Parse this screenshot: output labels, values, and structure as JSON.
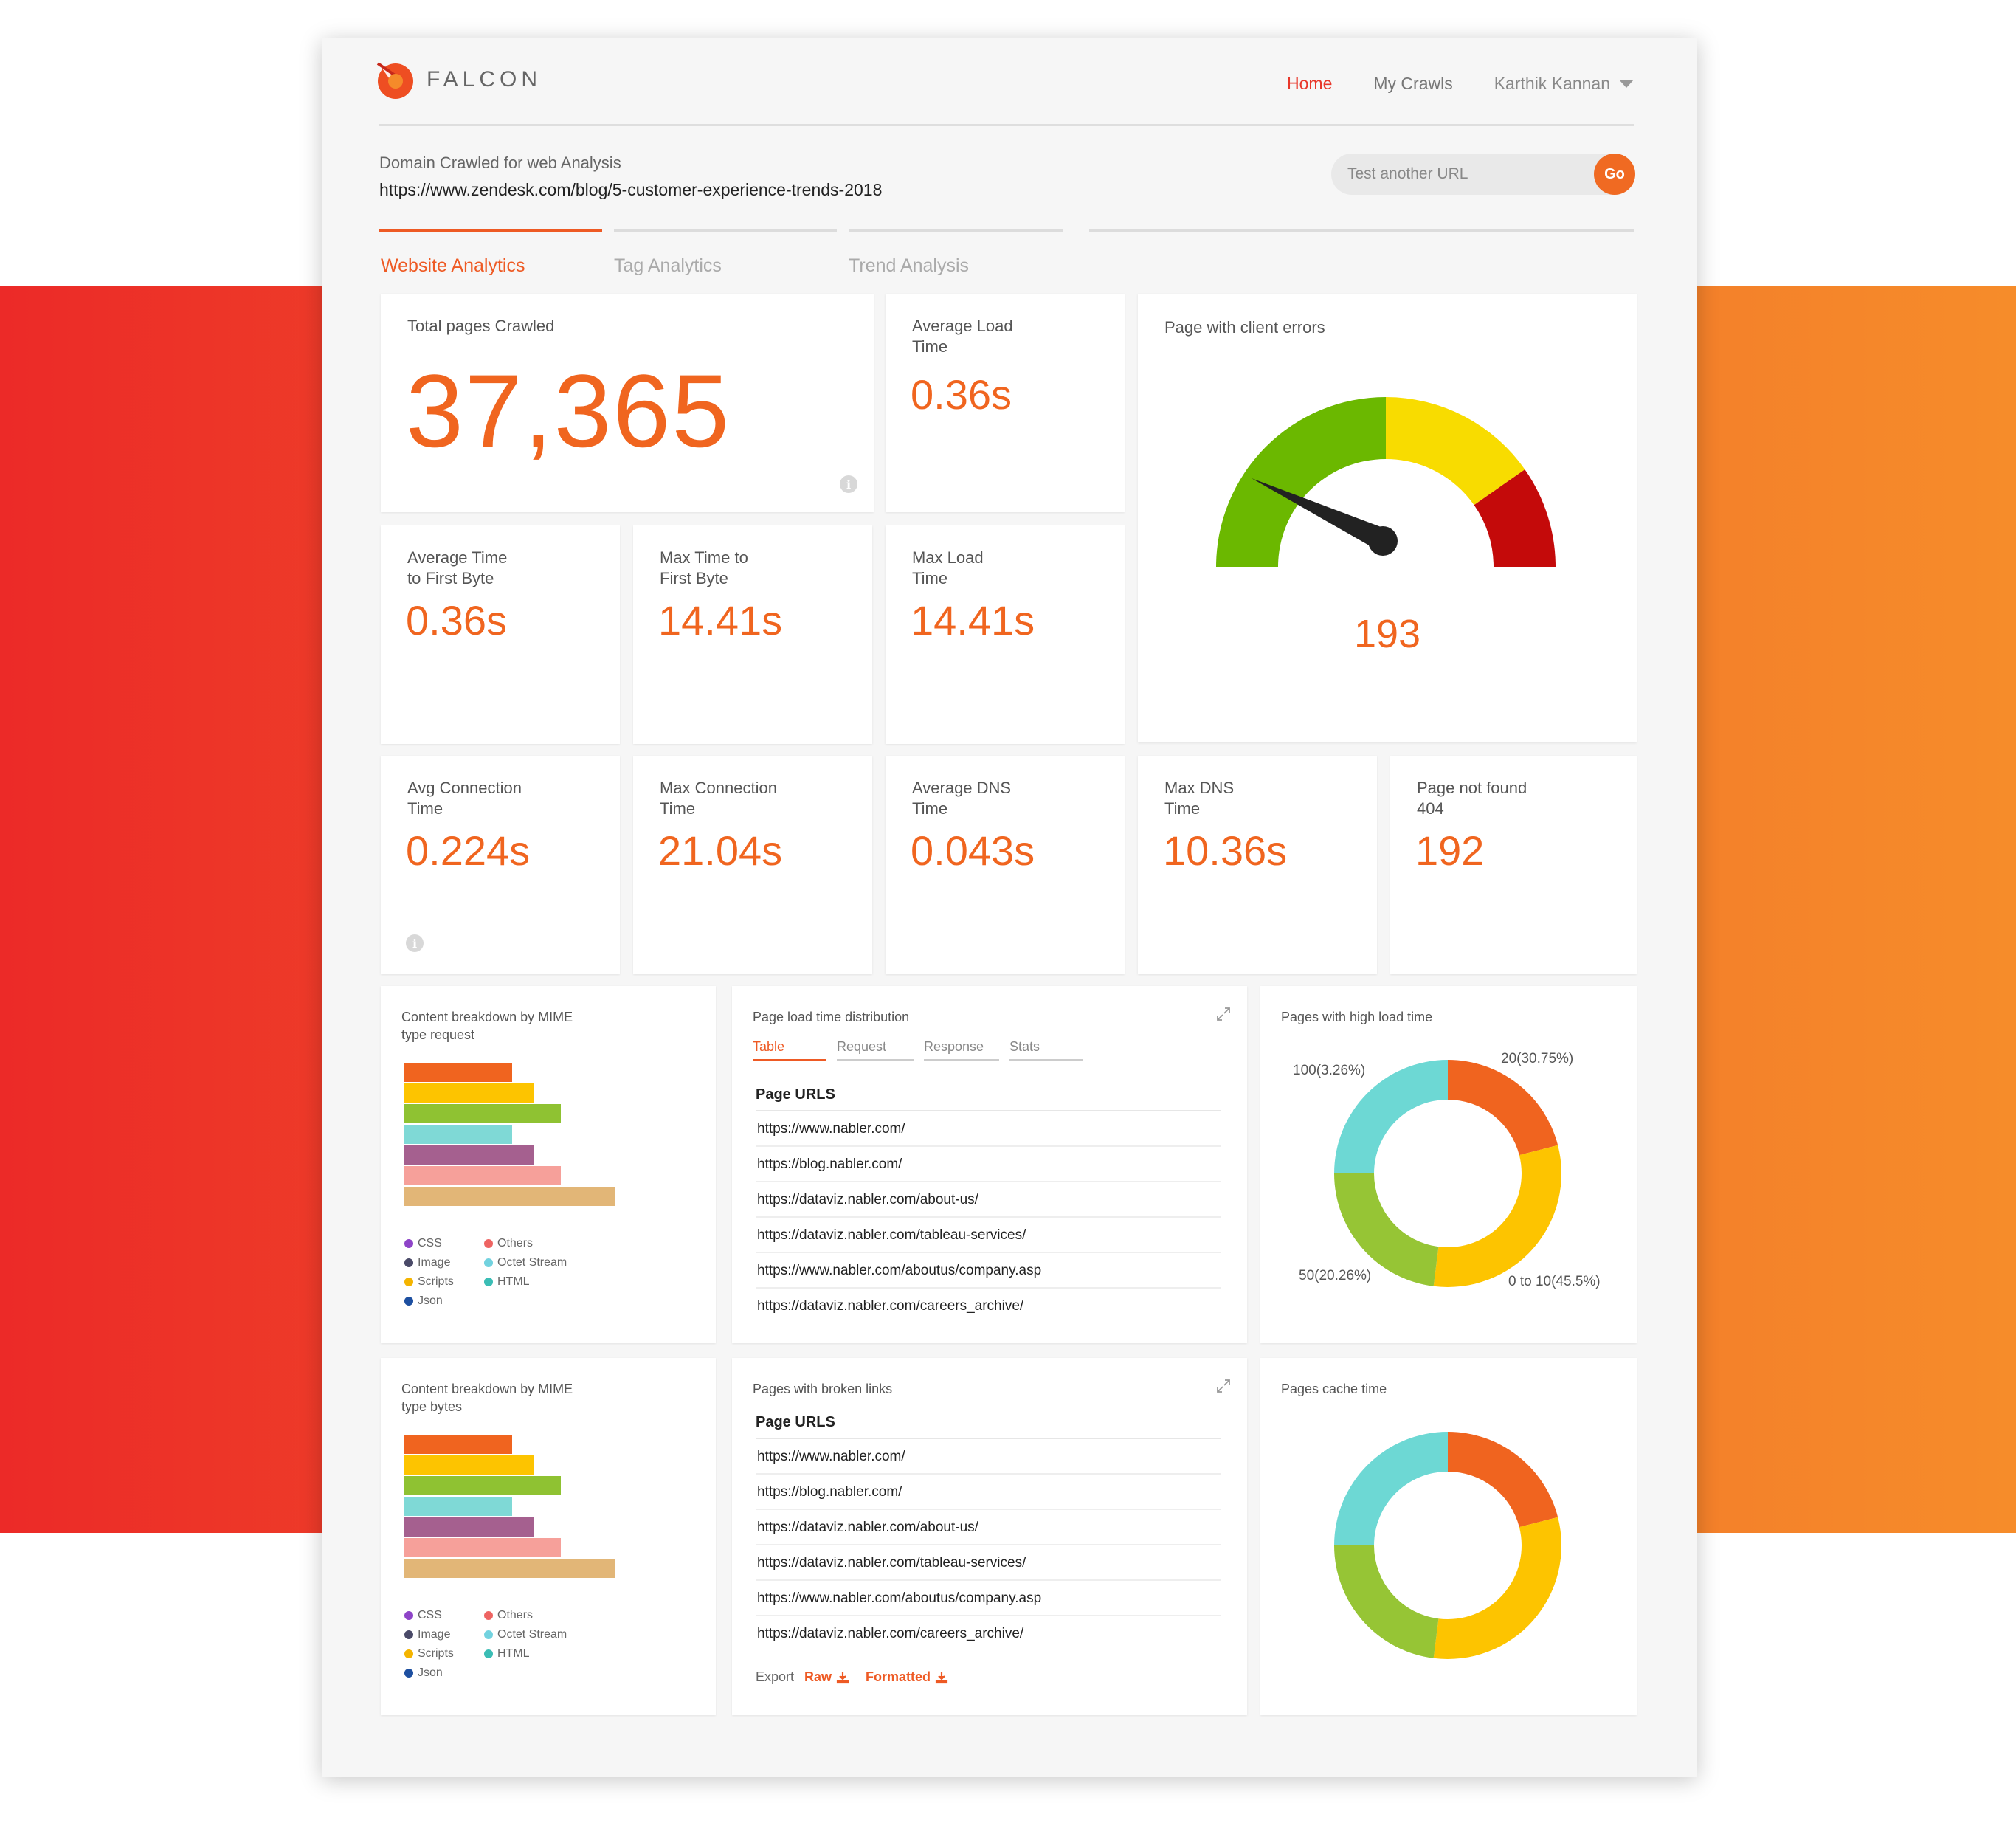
{
  "app": {
    "name": "FALCON"
  },
  "nav": {
    "home": "Home",
    "my_crawls": "My Crawls",
    "user": "Karthik Kannan"
  },
  "domain": {
    "label": "Domain Crawled for web Analysis",
    "url": "https://www.zendesk.com/blog/5-customer-experience-trends-2018"
  },
  "search": {
    "placeholder": "Test another URL",
    "go_label": "Go"
  },
  "tabs": [
    "Website Analytics",
    "Tag Analytics",
    "Trend Analysis"
  ],
  "metrics": {
    "total_pages": {
      "title": "Total pages Crawled",
      "value": "37,365"
    },
    "avg_load": {
      "title_l1": "Average Load",
      "title_l2": "Time",
      "value": "0.36s"
    },
    "avg_ttfb": {
      "title_l1": "Average Time",
      "title_l2": "to First Byte",
      "value": "0.36s"
    },
    "max_ttfb": {
      "title_l1": "Max Time to",
      "title_l2": "First Byte",
      "value": "14.41s"
    },
    "max_load": {
      "title_l1": "Max Load",
      "title_l2": "Time",
      "value": "14.41s"
    },
    "avg_conn": {
      "title_l1": "Avg Connection",
      "title_l2": "Time",
      "value": "0.224s"
    },
    "max_conn": {
      "title_l1": "Max Connection",
      "title_l2": "Time",
      "value": "21.04s"
    },
    "avg_dns": {
      "title_l1": "Average DNS",
      "title_l2": "Time",
      "value": "0.043s"
    },
    "max_dns": {
      "title_l1": "Max DNS",
      "title_l2": "Time",
      "value": "10.36s"
    },
    "not_found": {
      "title_l1": "Page not found",
      "title_l2": "404",
      "value": "192"
    }
  },
  "client_errors": {
    "title": "Page with client errors",
    "value": "193",
    "colors": {
      "green": "#6bb800",
      "yellow": "#f8dc00",
      "red": "#c40a0a",
      "needle": "#222222"
    }
  },
  "mime_request": {
    "title_l1": "Content breakdown by MIME",
    "title_l2": "type request"
  },
  "mime_bytes": {
    "title_l1": "Content breakdown by MIME",
    "title_l2": "type bytes"
  },
  "bar_colors": [
    "#f0641f",
    "#fdc400",
    "#8fc232",
    "#7fd9d6",
    "#a5608f",
    "#f6a09a",
    "#e2b677"
  ],
  "legend": [
    {
      "label": "CSS",
      "color": "#8e44c8"
    },
    {
      "label": "Others",
      "color": "#ee6462"
    },
    {
      "label": "Image",
      "color": "#4a4a68"
    },
    {
      "label": "Octet Stream",
      "color": "#72d2df"
    },
    {
      "label": "Scripts",
      "color": "#f4b400"
    },
    {
      "label": "HTML",
      "color": "#3bbdb5"
    },
    {
      "label": "Json",
      "color": "#1d4fa0"
    }
  ],
  "load_distribution": {
    "title": "Page load time distribution",
    "tabs": [
      "Table",
      "Request",
      "Response",
      "Stats"
    ],
    "header": "Page URLS",
    "rows": [
      "https://www.nabler.com/",
      "https://blog.nabler.com/",
      "https://dataviz.nabler.com/about-us/",
      "https://dataviz.nabler.com/tableau-services/",
      "https://www.nabler.com/aboutus/company.asp",
      "https://dataviz.nabler.com/careers_archive/"
    ]
  },
  "broken_links": {
    "title": "Pages with broken links",
    "header": "Page URLS",
    "rows": [
      "https://www.nabler.com/",
      "https://blog.nabler.com/",
      "https://dataviz.nabler.com/about-us/",
      "https://dataviz.nabler.com/tableau-services/",
      "https://www.nabler.com/aboutus/company.asp",
      "https://dataviz.nabler.com/careers_archive/"
    ],
    "export_label": "Export",
    "raw_label": "Raw",
    "formatted_label": "Formatted"
  },
  "high_load": {
    "title": "Pages with high load time",
    "labels": [
      "20(30.75%)",
      "0 to 10(45.5%)",
      "50(20.26%)",
      "100(3.26%)"
    ]
  },
  "cache_time": {
    "title": "Pages cache time"
  },
  "donut_colors": [
    "#f0641f",
    "#fdc400",
    "#96c535",
    "#6dd8d4"
  ]
}
